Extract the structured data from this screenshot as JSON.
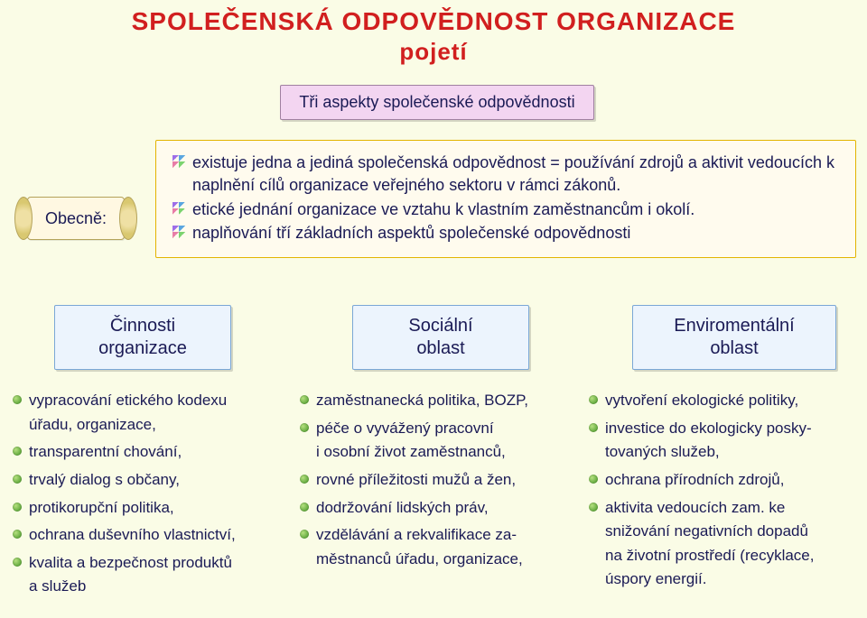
{
  "colors": {
    "background": "#fafce6",
    "title": "#d11f1f",
    "body_text": "#1a1a55",
    "pink_box_bg": "#f3d5f1",
    "pink_box_border": "#a080a0",
    "info_box_bg": "#fffbee",
    "info_box_border": "#e3b400",
    "cat_box_bg": "#ecf4fd",
    "cat_box_border": "#7aa7d6",
    "scroll_bg": "#fff8e2",
    "scroll_border": "#b4a25a",
    "list_bullet": "#3b8f1e"
  },
  "title": {
    "line1": "SPOLEČENSKÁ  ODPOVĚDNOST  ORGANIZACE",
    "line2": "pojetí"
  },
  "aspects_box": "Tři aspekty společenské odpovědnosti",
  "scroll": "Obecně:",
  "info_items": [
    "existuje jedna a jediná společenská odpovědnost = používání zdrojů a aktivit vedoucích k naplnění cílů organizace veřejného sektoru v rámci zákonů.",
    "etické jednání organizace ve vztahu k vlastním zaměstnancům i okolí.",
    "naplňování tří základních aspektů  společenské odpovědnosti"
  ],
  "cats": [
    {
      "l1": "Činnosti",
      "l2": "organizace"
    },
    {
      "l1": "Sociální",
      "l2": "oblast"
    },
    {
      "l1": "Enviromentální",
      "l2": "oblast"
    }
  ],
  "col1": [
    "vypracování etického kodexu",
    "   úřadu, organizace,",
    "transparentní chování,",
    "trvalý dialog s občany,",
    "protikorupční politika,",
    "ochrana duševního vlastnictví,",
    "kvalita a bezpečnost produktů",
    "   a služeb"
  ],
  "col2": [
    "zaměstnanecká politika, BOZP,",
    "péče o vyvážený pracovní",
    "   i osobní život zaměstnanců,",
    "rovné příležitosti mužů a žen,",
    "dodržování lidských práv,",
    "vzdělávání a rekvalifikace za-",
    "   městnanců úřadu, organizace,"
  ],
  "col3": [
    "vytvoření ekologické politiky,",
    "investice do ekologicky posky-",
    "   tovaných služeb,",
    "ochrana přírodních zdrojů,",
    "aktivita vedoucích zam. ke",
    "   snižování negativních dopadů",
    "   na životní prostředí (recyklace,",
    "   úspory energií."
  ]
}
